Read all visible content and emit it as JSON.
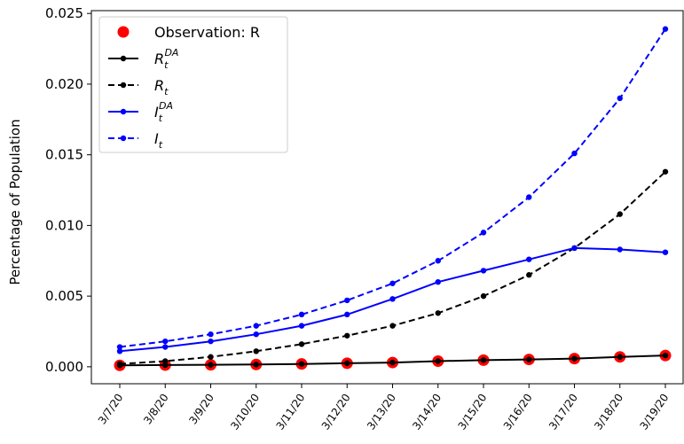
{
  "chart_data": {
    "type": "line",
    "title": "",
    "xlabel": "",
    "ylabel": "Percentage of Population",
    "ylim": [
      -0.0012,
      0.0252
    ],
    "yticks": [
      "0.000",
      "0.005",
      "0.010",
      "0.015",
      "0.020",
      "0.025"
    ],
    "ytick_values": [
      0,
      0.005,
      0.01,
      0.015,
      0.02,
      0.025
    ],
    "categories": [
      "3/7/20",
      "3/8/20",
      "3/9/20",
      "3/10/20",
      "3/11/20",
      "3/12/20",
      "3/13/20",
      "3/14/20",
      "3/15/20",
      "3/16/20",
      "3/17/20",
      "3/18/20",
      "3/19/20"
    ],
    "grid": false,
    "legend_position": "top-left",
    "series": [
      {
        "name": "Observation: R",
        "style": "markers",
        "color": "#ff0000",
        "values": [
          0.0001,
          0.00012,
          0.00014,
          0.00016,
          0.0002,
          0.00025,
          0.0003,
          0.0004,
          0.00047,
          0.00052,
          0.00058,
          0.0007,
          0.0008
        ]
      },
      {
        "name": "R",
        "sup": "DA",
        "sub": "t",
        "style": "solid",
        "color": "#000000",
        "values": [
          0.0001,
          0.00012,
          0.00014,
          0.00016,
          0.0002,
          0.00025,
          0.0003,
          0.0004,
          0.00047,
          0.00052,
          0.00058,
          0.0007,
          0.0008
        ]
      },
      {
        "name": "R",
        "sup": "",
        "sub": "t",
        "style": "dashed",
        "color": "#000000",
        "values": [
          0.0002,
          0.0004,
          0.0007,
          0.0011,
          0.0016,
          0.0022,
          0.0029,
          0.0038,
          0.005,
          0.0065,
          0.0084,
          0.0108,
          0.0138
        ]
      },
      {
        "name": "I",
        "sup": "DA",
        "sub": "t",
        "style": "solid",
        "color": "#0000ff",
        "values": [
          0.0011,
          0.0014,
          0.0018,
          0.0023,
          0.0029,
          0.0037,
          0.0048,
          0.006,
          0.0068,
          0.0076,
          0.0084,
          0.0083,
          0.0081
        ]
      },
      {
        "name": "I",
        "sup": "",
        "sub": "t",
        "style": "dashed",
        "color": "#0000ff",
        "values": [
          0.0014,
          0.0018,
          0.0023,
          0.0029,
          0.0037,
          0.0047,
          0.0059,
          0.0075,
          0.0095,
          0.012,
          0.0151,
          0.019,
          0.0239
        ]
      }
    ]
  }
}
